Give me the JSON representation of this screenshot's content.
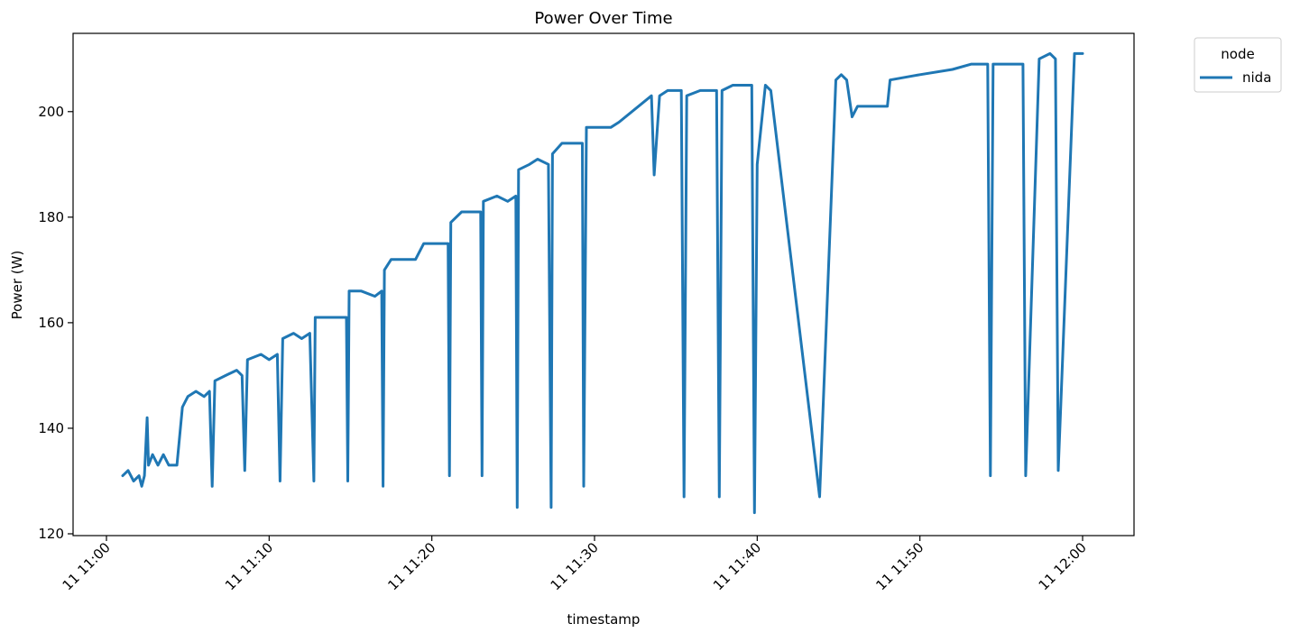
{
  "chart_data": {
    "type": "line",
    "title": "Power Over Time",
    "xlabel": "timestamp",
    "ylabel": "Power (W)",
    "xlim": [
      "11:00",
      "12:00"
    ],
    "ylim": [
      120,
      215
    ],
    "x_ticks": [
      {
        "value": "11:00",
        "label": "11 11:00"
      },
      {
        "value": "11:10",
        "label": "11 11:10"
      },
      {
        "value": "11:20",
        "label": "11 11:20"
      },
      {
        "value": "11:30",
        "label": "11 11:30"
      },
      {
        "value": "11:40",
        "label": "11 11:40"
      },
      {
        "value": "11:50",
        "label": "11 11:50"
      },
      {
        "value": "12:00",
        "label": "11 12:00"
      }
    ],
    "y_ticks": [
      120,
      140,
      160,
      180,
      200
    ],
    "grid": false,
    "legend": {
      "title": "node",
      "placement": "outside-top-right"
    },
    "series": [
      {
        "name": "nida",
        "color": "#1f77b4",
        "points": [
          [
            "11:01:00",
            131
          ],
          [
            "11:01:20",
            132
          ],
          [
            "11:01:40",
            130
          ],
          [
            "11:02:00",
            131
          ],
          [
            "11:02:10",
            129
          ],
          [
            "11:02:20",
            131
          ],
          [
            "11:02:30",
            142
          ],
          [
            "11:02:35",
            133
          ],
          [
            "11:02:50",
            135
          ],
          [
            "11:03:10",
            133
          ],
          [
            "11:03:30",
            135
          ],
          [
            "11:03:50",
            133
          ],
          [
            "11:04:20",
            133
          ],
          [
            "11:04:40",
            144
          ],
          [
            "11:05:00",
            146
          ],
          [
            "11:05:30",
            147
          ],
          [
            "11:06:00",
            146
          ],
          [
            "11:06:20",
            147
          ],
          [
            "11:06:30",
            129
          ],
          [
            "11:06:40",
            149
          ],
          [
            "11:07:20",
            150
          ],
          [
            "11:08:00",
            151
          ],
          [
            "11:08:20",
            150
          ],
          [
            "11:08:30",
            132
          ],
          [
            "11:08:40",
            153
          ],
          [
            "11:09:30",
            154
          ],
          [
            "11:10:00",
            153
          ],
          [
            "11:10:30",
            154
          ],
          [
            "11:10:40",
            130
          ],
          [
            "11:10:50",
            157
          ],
          [
            "11:11:30",
            158
          ],
          [
            "11:12:00",
            157
          ],
          [
            "11:12:30",
            158
          ],
          [
            "11:12:45",
            130
          ],
          [
            "11:12:50",
            161
          ],
          [
            "11:13:30",
            161
          ],
          [
            "11:14:20",
            161
          ],
          [
            "11:14:45",
            161
          ],
          [
            "11:14:50",
            130
          ],
          [
            "11:14:55",
            166
          ],
          [
            "11:15:40",
            166
          ],
          [
            "11:16:30",
            165
          ],
          [
            "11:16:55",
            166
          ],
          [
            "11:17:00",
            129
          ],
          [
            "11:17:05",
            170
          ],
          [
            "11:17:30",
            172
          ],
          [
            "11:18:20",
            172
          ],
          [
            "11:19:00",
            172
          ],
          [
            "11:19:30",
            175
          ],
          [
            "11:20:30",
            175
          ],
          [
            "11:21:00",
            175
          ],
          [
            "11:21:05",
            131
          ],
          [
            "11:21:10",
            179
          ],
          [
            "11:21:50",
            181
          ],
          [
            "11:22:30",
            181
          ],
          [
            "11:23:00",
            181
          ],
          [
            "11:23:05",
            131
          ],
          [
            "11:23:10",
            183
          ],
          [
            "11:24:00",
            184
          ],
          [
            "11:24:40",
            183
          ],
          [
            "11:25:10",
            184
          ],
          [
            "11:25:15",
            125
          ],
          [
            "11:25:20",
            189
          ],
          [
            "11:26:00",
            190
          ],
          [
            "11:26:30",
            191
          ],
          [
            "11:27:10",
            190
          ],
          [
            "11:27:20",
            125
          ],
          [
            "11:27:25",
            192
          ],
          [
            "11:28:00",
            194
          ],
          [
            "11:28:40",
            194
          ],
          [
            "11:29:15",
            194
          ],
          [
            "11:29:20",
            129
          ],
          [
            "11:29:30",
            197
          ],
          [
            "11:30:00",
            197
          ],
          [
            "11:31:00",
            197
          ],
          [
            "11:31:30",
            198
          ],
          [
            "11:33:30",
            203
          ],
          [
            "11:33:40",
            188
          ],
          [
            "11:34:00",
            203
          ],
          [
            "11:34:30",
            204
          ],
          [
            "11:35:20",
            204
          ],
          [
            "11:35:30",
            127
          ],
          [
            "11:35:40",
            203
          ],
          [
            "11:36:30",
            204
          ],
          [
            "11:37:30",
            204
          ],
          [
            "11:37:40",
            127
          ],
          [
            "11:37:50",
            204
          ],
          [
            "11:38:30",
            205
          ],
          [
            "11:39:30",
            205
          ],
          [
            "11:39:40",
            205
          ],
          [
            "11:39:50",
            124
          ],
          [
            "11:40:00",
            190
          ],
          [
            "11:40:30",
            205
          ],
          [
            "11:40:50",
            204
          ],
          [
            "11:43:50",
            127
          ],
          [
            "11:44:50",
            206
          ],
          [
            "11:45:10",
            207
          ],
          [
            "11:45:30",
            206
          ],
          [
            "11:45:50",
            199
          ],
          [
            "11:46:10",
            201
          ],
          [
            "11:46:50",
            201
          ],
          [
            "11:47:30",
            201
          ],
          [
            "11:48:00",
            201
          ],
          [
            "11:48:10",
            206
          ],
          [
            "11:50:00",
            207
          ],
          [
            "11:52:00",
            208
          ],
          [
            "11:53:10",
            209
          ],
          [
            "11:54:10",
            209
          ],
          [
            "11:54:20",
            131
          ],
          [
            "11:54:30",
            209
          ],
          [
            "11:55:30",
            209
          ],
          [
            "11:56:20",
            209
          ],
          [
            "11:56:30",
            131
          ],
          [
            "11:57:20",
            210
          ],
          [
            "11:58:00",
            211
          ],
          [
            "11:58:20",
            210
          ],
          [
            "11:58:30",
            132
          ],
          [
            "11:59:30",
            211
          ],
          [
            "12:00:00",
            211
          ]
        ]
      }
    ]
  }
}
